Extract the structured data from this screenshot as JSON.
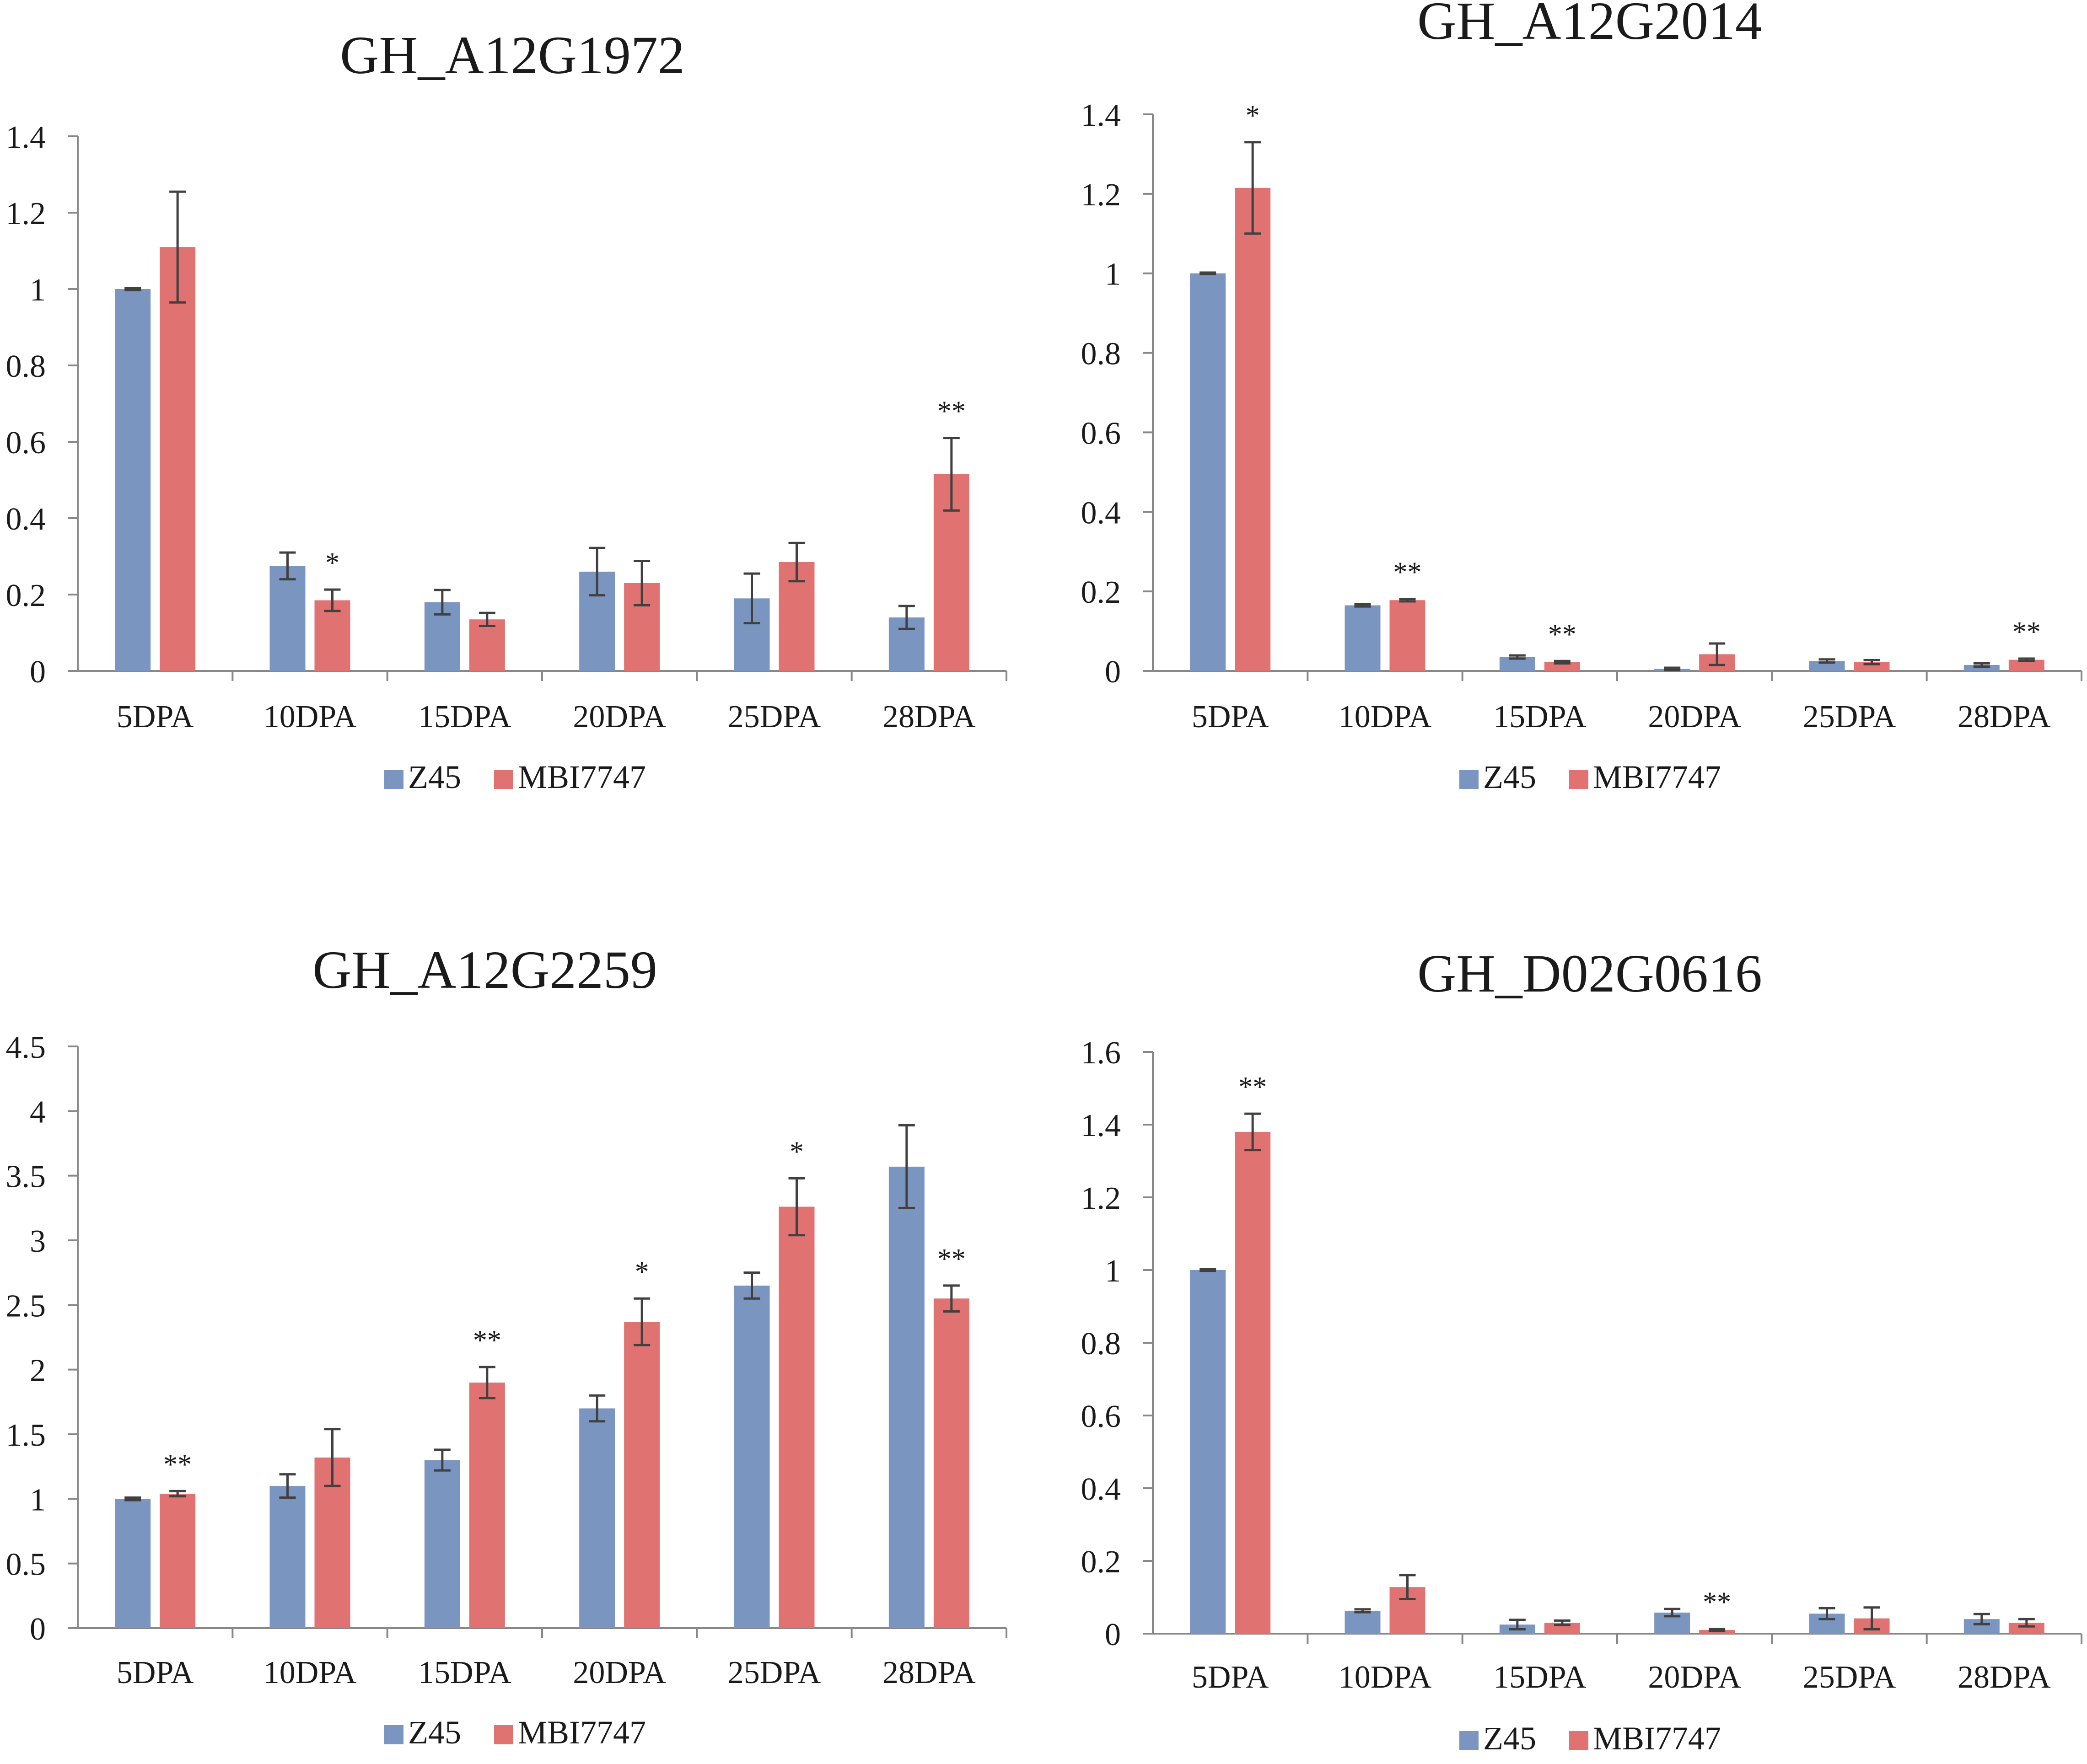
{
  "colors": {
    "z45": "#7b95c1",
    "mbi": "#e07271",
    "axis": "#888888",
    "error": "#404040",
    "text": "#1a1a1a"
  },
  "legend": {
    "series1": "Z45",
    "series2": "MBI7747"
  },
  "chart_data": [
    {
      "type": "bar",
      "title": "GH_A12G1972",
      "categories": [
        "5DPA",
        "10DPA",
        "15DPA",
        "20DPA",
        "25DPA",
        "28DPA"
      ],
      "ylim": [
        0,
        1.4
      ],
      "yticks": [
        "0",
        "0.2",
        "0.4",
        "0.6",
        "0.8",
        "1",
        "1.2",
        "1.4"
      ],
      "series": [
        {
          "name": "Z45",
          "values": [
            1.0,
            0.275,
            0.18,
            0.26,
            0.19,
            0.14
          ],
          "errors": [
            0.003,
            0.035,
            0.032,
            0.062,
            0.065,
            0.03
          ]
        },
        {
          "name": "MBI7747",
          "values": [
            1.11,
            0.185,
            0.135,
            0.23,
            0.285,
            0.515
          ],
          "errors": [
            0.145,
            0.028,
            0.017,
            0.058,
            0.05,
            0.095
          ]
        }
      ],
      "annotations": [
        "",
        "*",
        "",
        "",
        "",
        "**"
      ]
    },
    {
      "type": "bar",
      "title": "GH_A12G2014",
      "categories": [
        "5DPA",
        "10DPA",
        "15DPA",
        "20DPA",
        "25DPA",
        "28DPA"
      ],
      "ylim": [
        0,
        1.4
      ],
      "yticks": [
        "0",
        "0.2",
        "0.4",
        "0.6",
        "0.8",
        "1",
        "1.2",
        "1.4"
      ],
      "series": [
        {
          "name": "Z45",
          "values": [
            1.0,
            0.165,
            0.035,
            0.005,
            0.025,
            0.015
          ],
          "errors": [
            0.002,
            0.003,
            0.004,
            0.003,
            0.004,
            0.004
          ]
        },
        {
          "name": "MBI7747",
          "values": [
            1.215,
            0.178,
            0.022,
            0.042,
            0.022,
            0.028
          ],
          "errors": [
            0.115,
            0.003,
            0.003,
            0.027,
            0.005,
            0.003
          ]
        }
      ],
      "annotations": [
        "*",
        "**",
        "**",
        "",
        "",
        "**"
      ]
    },
    {
      "type": "bar",
      "title": "GH_A12G2259",
      "categories": [
        "5DPA",
        "10DPA",
        "15DPA",
        "20DPA",
        "25DPA",
        "28DPA"
      ],
      "ylim": [
        0,
        4.5
      ],
      "yticks": [
        "0",
        "0.5",
        "1",
        "1.5",
        "2",
        "2.5",
        "3",
        "3.5",
        "4",
        "4.5"
      ],
      "series": [
        {
          "name": "Z45",
          "values": [
            1.0,
            1.1,
            1.3,
            1.7,
            2.65,
            3.57
          ],
          "errors": [
            0.01,
            0.09,
            0.08,
            0.1,
            0.1,
            0.32
          ]
        },
        {
          "name": "MBI7747",
          "values": [
            1.04,
            1.32,
            1.9,
            2.37,
            3.26,
            2.55
          ],
          "errors": [
            0.02,
            0.22,
            0.12,
            0.18,
            0.22,
            0.1
          ]
        }
      ],
      "annotations": [
        "**",
        "",
        "**",
        "*",
        "*",
        "**"
      ]
    },
    {
      "type": "bar",
      "title": "GH_D02G0616",
      "categories": [
        "5DPA",
        "10DPA",
        "15DPA",
        "20DPA",
        "25DPA",
        "28DPA"
      ],
      "ylim": [
        0,
        1.6
      ],
      "yticks": [
        "0",
        "0.2",
        "0.4",
        "0.6",
        "0.8",
        "1",
        "1.2",
        "1.4",
        "1.6"
      ],
      "series": [
        {
          "name": "Z45",
          "values": [
            1.0,
            0.063,
            0.025,
            0.058,
            0.055,
            0.04
          ],
          "errors": [
            0.002,
            0.004,
            0.013,
            0.01,
            0.015,
            0.014
          ]
        },
        {
          "name": "MBI7747",
          "values": [
            1.38,
            0.128,
            0.03,
            0.01,
            0.042,
            0.03
          ],
          "errors": [
            0.05,
            0.033,
            0.006,
            0.003,
            0.03,
            0.01
          ]
        }
      ],
      "annotations": [
        "**",
        "",
        "",
        "**",
        "",
        ""
      ]
    }
  ]
}
